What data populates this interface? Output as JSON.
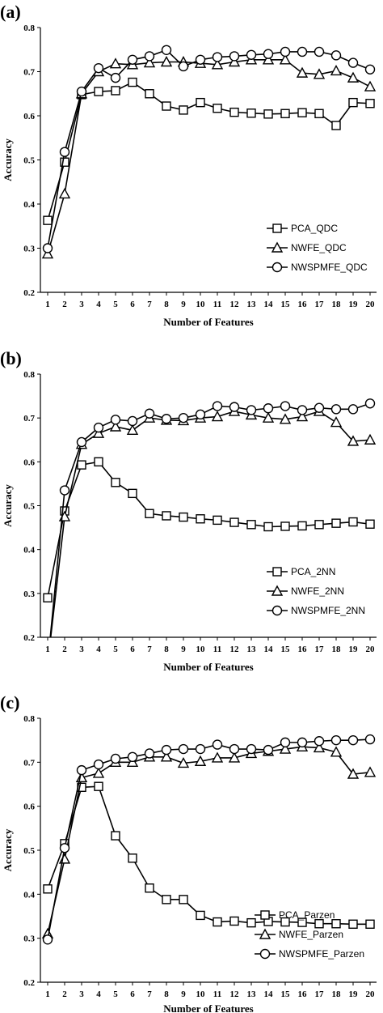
{
  "chart_data": [
    {
      "type": "line",
      "panel_label": "(a)",
      "xlabel": "Number of Features",
      "ylabel": "Accuracy",
      "x": [
        1,
        2,
        3,
        4,
        5,
        6,
        7,
        8,
        9,
        10,
        11,
        12,
        13,
        14,
        15,
        16,
        17,
        18,
        19,
        20
      ],
      "xlim": [
        1,
        20
      ],
      "ylim": [
        0.2,
        0.8
      ],
      "yticks": [
        "0.2",
        "0.3",
        "0.4",
        "0.5",
        "0.6",
        "0.7",
        "0.8"
      ],
      "legend_position": "bottom-right",
      "grid": false,
      "series": [
        {
          "name": "PCA_QDC",
          "marker": "square",
          "values": [
            0.363,
            0.495,
            0.648,
            0.655,
            0.657,
            0.676,
            0.65,
            0.622,
            0.613,
            0.63,
            0.617,
            0.608,
            0.606,
            0.604,
            0.605,
            0.607,
            0.605,
            0.578,
            0.63,
            0.628
          ]
        },
        {
          "name": "NWFE_QDC",
          "marker": "triangle",
          "values": [
            0.287,
            0.423,
            0.65,
            0.7,
            0.718,
            0.716,
            0.72,
            0.722,
            0.722,
            0.719,
            0.716,
            0.722,
            0.727,
            0.727,
            0.727,
            0.697,
            0.694,
            0.702,
            0.686,
            0.666
          ]
        },
        {
          "name": "NWSPMFE_QDC",
          "marker": "circle",
          "values": [
            0.3,
            0.518,
            0.655,
            0.708,
            0.686,
            0.727,
            0.735,
            0.749,
            0.712,
            0.727,
            0.733,
            0.735,
            0.738,
            0.74,
            0.745,
            0.745,
            0.745,
            0.737,
            0.72,
            0.705
          ]
        }
      ]
    },
    {
      "type": "line",
      "panel_label": "(b)",
      "xlabel": "Number of Features",
      "ylabel": "Accuracy",
      "x": [
        1,
        2,
        3,
        4,
        5,
        6,
        7,
        8,
        9,
        10,
        11,
        12,
        13,
        14,
        15,
        16,
        17,
        18,
        19,
        20
      ],
      "xlim": [
        1,
        20
      ],
      "ylim": [
        0.2,
        0.8
      ],
      "yticks": [
        "0.2",
        "0.3",
        "0.4",
        "0.5",
        "0.6",
        "0.7",
        "0.8"
      ],
      "legend_position": "bottom-right",
      "grid": false,
      "series": [
        {
          "name": "PCA_2NN",
          "marker": "square",
          "values": [
            0.29,
            0.488,
            0.593,
            0.6,
            0.553,
            0.528,
            0.482,
            0.477,
            0.474,
            0.47,
            0.467,
            0.462,
            0.457,
            0.452,
            0.453,
            0.454,
            0.457,
            0.46,
            0.463,
            0.458
          ]
        },
        {
          "name": "NWFE_2NN",
          "marker": "triangle",
          "values": [
            0.14,
            0.475,
            0.64,
            0.665,
            0.68,
            0.672,
            0.7,
            0.695,
            0.694,
            0.7,
            0.703,
            0.715,
            0.707,
            0.7,
            0.697,
            0.703,
            0.715,
            0.69,
            0.647,
            0.65
          ]
        },
        {
          "name": "NWSPMFE_2NN",
          "marker": "circle",
          "values": [
            0.14,
            0.535,
            0.645,
            0.678,
            0.696,
            0.693,
            0.71,
            0.698,
            0.7,
            0.708,
            0.727,
            0.725,
            0.718,
            0.722,
            0.727,
            0.718,
            0.723,
            0.72,
            0.72,
            0.733
          ]
        }
      ]
    },
    {
      "type": "line",
      "panel_label": "(c)",
      "xlabel": "Number of Features",
      "ylabel": "Accuracy",
      "x": [
        1,
        2,
        3,
        4,
        5,
        6,
        7,
        8,
        9,
        10,
        11,
        12,
        13,
        14,
        15,
        16,
        17,
        18,
        19,
        20
      ],
      "xlim": [
        1,
        20
      ],
      "ylim": [
        0.2,
        0.8
      ],
      "yticks": [
        "0.2",
        "0.3",
        "0.4",
        "0.5",
        "0.6",
        "0.7",
        "0.8"
      ],
      "legend_position": "bottom-right",
      "grid": false,
      "series": [
        {
          "name": "PCA_Parzen",
          "marker": "square",
          "values": [
            0.412,
            0.515,
            0.643,
            0.645,
            0.533,
            0.482,
            0.414,
            0.388,
            0.388,
            0.352,
            0.337,
            0.339,
            0.335,
            0.338,
            0.337,
            0.336,
            0.333,
            0.333,
            0.332,
            0.332
          ]
        },
        {
          "name": "NWFE_Parzen",
          "marker": "triangle",
          "values": [
            0.31,
            0.48,
            0.665,
            0.675,
            0.7,
            0.7,
            0.712,
            0.712,
            0.698,
            0.702,
            0.71,
            0.71,
            0.72,
            0.725,
            0.73,
            0.735,
            0.733,
            0.723,
            0.673,
            0.677
          ]
        },
        {
          "name": "NWSPMFE_Parzen",
          "marker": "circle",
          "values": [
            0.297,
            0.505,
            0.682,
            0.695,
            0.708,
            0.712,
            0.72,
            0.728,
            0.73,
            0.73,
            0.74,
            0.73,
            0.73,
            0.728,
            0.745,
            0.745,
            0.748,
            0.75,
            0.75,
            0.752
          ]
        }
      ]
    }
  ]
}
